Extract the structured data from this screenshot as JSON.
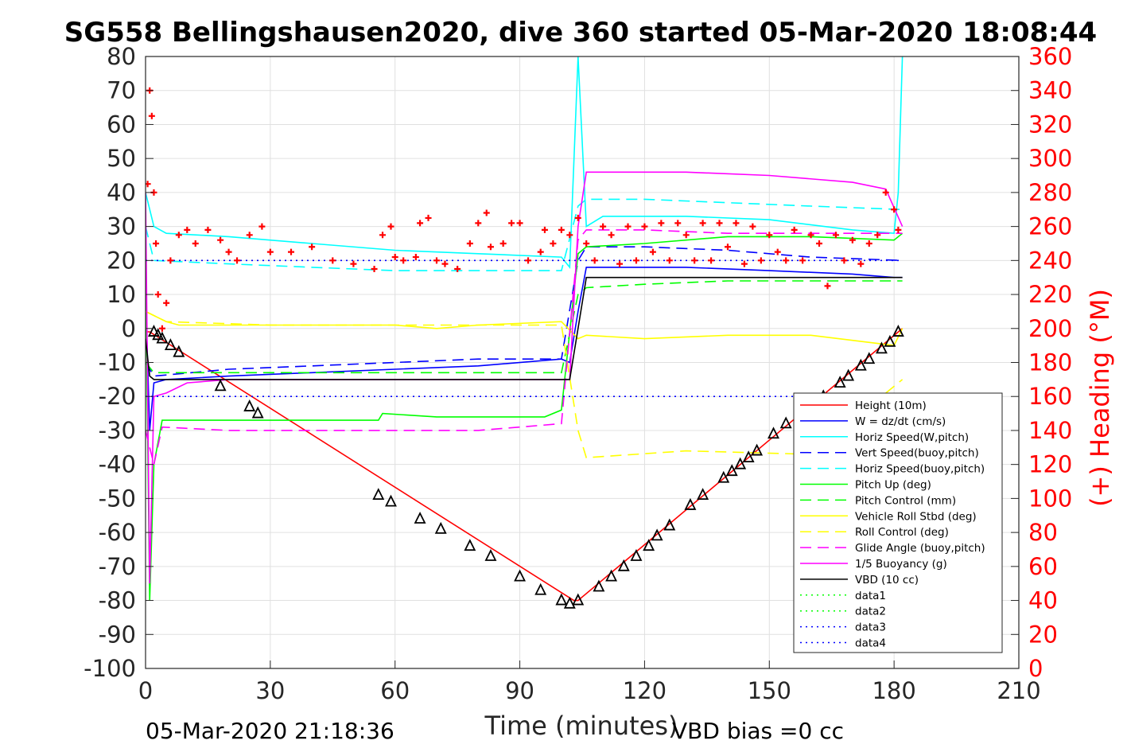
{
  "chart_data": {
    "type": "line",
    "title": "SG558 Bellingshausen2020, dive 360 started 05-Mar-2020 18:08:44",
    "xlabel": "Time (minutes)",
    "ylabel_right": "(+) Heading (°M)",
    "xlim": [
      0,
      210
    ],
    "ylim": [
      -100,
      80
    ],
    "ylim_right": [
      0,
      360
    ],
    "x_ticks": [
      "0",
      "30",
      "60",
      "90",
      "120",
      "150",
      "180",
      "210"
    ],
    "y_ticks": [
      "-100",
      "-90",
      "-80",
      "-70",
      "-60",
      "-50",
      "-40",
      "-30",
      "-20",
      "-10",
      "0",
      "10",
      "20",
      "30",
      "40",
      "50",
      "60",
      "70",
      "80"
    ],
    "y_right_ticks": [
      "0",
      "20",
      "40",
      "60",
      "80",
      "100",
      "120",
      "140",
      "160",
      "180",
      "200",
      "220",
      "240",
      "260",
      "280",
      "300",
      "320",
      "340",
      "360"
    ],
    "grid": true,
    "legend_position": "lower-right",
    "footer_left": "05-Mar-2020 21:18:36",
    "footer_right": "VBD bias =0 cc",
    "series": [
      {
        "name": "Height (10m)",
        "color": "#ff0000",
        "style": "solid",
        "x": [
          0,
          1,
          103,
          104,
          182
        ],
        "y": [
          -1,
          -1,
          -80,
          -80,
          0
        ]
      },
      {
        "name": "W = dz/dt (cm/s)",
        "color": "#0000ff",
        "style": "solid",
        "x": [
          0,
          1,
          2,
          5,
          20,
          40,
          60,
          80,
          100,
          102,
          104,
          106,
          110,
          130,
          150,
          170,
          180,
          182
        ],
        "y": [
          10,
          -30,
          -16,
          -15,
          -14,
          -13,
          -12,
          -11,
          -9,
          -10,
          5,
          18,
          18,
          18,
          17,
          16,
          15,
          15
        ]
      },
      {
        "name": "Horiz Speed(W,pitch)",
        "color": "#00ffff",
        "style": "solid",
        "x": [
          0,
          2,
          5,
          20,
          40,
          60,
          80,
          100,
          102,
          104,
          106,
          110,
          130,
          150,
          170,
          180,
          181,
          182
        ],
        "y": [
          40,
          30,
          28,
          27,
          25,
          23,
          22,
          21,
          18,
          80,
          30,
          33,
          33,
          32,
          29,
          28,
          40,
          80
        ]
      },
      {
        "name": "Vert Speed(buoy,pitch)",
        "color": "#0000ff",
        "style": "dashed",
        "x": [
          0,
          2,
          20,
          40,
          60,
          80,
          100,
          104,
          106,
          120,
          140,
          160,
          182
        ],
        "y": [
          -10,
          -14,
          -12,
          -11,
          -10,
          -9,
          -9,
          20,
          24,
          24,
          23,
          21,
          20
        ]
      },
      {
        "name": "Horiz Speed(buoy,pitch)",
        "color": "#00ffff",
        "style": "dashed",
        "x": [
          0,
          2,
          20,
          40,
          60,
          80,
          100,
          104,
          106,
          120,
          140,
          160,
          182
        ],
        "y": [
          30,
          20,
          19,
          18,
          17,
          17,
          17,
          36,
          38,
          38,
          37,
          36,
          35
        ]
      },
      {
        "name": "Pitch Up (deg)",
        "color": "#00ff00",
        "style": "solid",
        "x": [
          0,
          1,
          2,
          4,
          20,
          40,
          56,
          57,
          70,
          80,
          96,
          100,
          104,
          106,
          120,
          140,
          160,
          180,
          182
        ],
        "y": [
          20,
          -80,
          -40,
          -27,
          -27,
          -27,
          -27,
          -25,
          -26,
          -26,
          -26,
          -24,
          22,
          24,
          25,
          27,
          27,
          26,
          28
        ]
      },
      {
        "name": "Pitch Control (mm)",
        "color": "#00ff00",
        "style": "dashed",
        "x": [
          0,
          2,
          20,
          60,
          100,
          104,
          106,
          120,
          140,
          160,
          182
        ],
        "y": [
          -10,
          -13,
          -13,
          -13,
          -13,
          10,
          12,
          13,
          14,
          14,
          14
        ]
      },
      {
        "name": "Vehicle Roll Stbd (deg)",
        "color": "#ffff00",
        "style": "solid",
        "x": [
          0,
          5,
          8,
          20,
          30,
          40,
          56,
          60,
          70,
          80,
          100,
          104,
          106,
          120,
          140,
          160,
          180,
          182
        ],
        "y": [
          5,
          2,
          1,
          1,
          1,
          1,
          1,
          1,
          0,
          1,
          2,
          -3,
          -2,
          -3,
          -2,
          -2,
          -5,
          0
        ]
      },
      {
        "name": "Roll Control (deg)",
        "color": "#ffff00",
        "style": "dashed",
        "x": [
          0,
          5,
          30,
          60,
          100,
          104,
          106,
          130,
          160,
          182
        ],
        "y": [
          5,
          2,
          1,
          1,
          1,
          -30,
          -38,
          -36,
          -37,
          -15
        ]
      },
      {
        "name": "Glide Angle (buoy,pitch)",
        "color": "#ff00ff",
        "style": "dashed",
        "x": [
          0,
          2,
          4,
          20,
          40,
          60,
          80,
          100,
          104,
          106,
          120,
          140,
          160,
          182
        ],
        "y": [
          -30,
          -40,
          -29,
          -30,
          -30,
          -30,
          -30,
          -28,
          26,
          29,
          29,
          28,
          28,
          28
        ]
      },
      {
        "name": "1/5 Buoyancy (g)",
        "color": "#ff00ff",
        "style": "solid",
        "x": [
          0,
          1,
          2,
          5,
          10,
          20,
          40,
          60,
          80,
          100,
          102,
          104,
          106,
          110,
          130,
          150,
          170,
          178,
          182
        ],
        "y": [
          40,
          -75,
          -20,
          -19,
          -16,
          -15,
          -15,
          -15,
          -15,
          -15,
          -15,
          30,
          46,
          46,
          46,
          45,
          43,
          41,
          30
        ]
      },
      {
        "name": "VBD (10 cc)",
        "color": "#000000",
        "style": "solid",
        "x": [
          0,
          1,
          2,
          102,
          104,
          106,
          182
        ],
        "y": [
          -3,
          -14,
          -15,
          -15,
          0,
          15,
          15
        ]
      },
      {
        "name": "data1",
        "color": "#00ff00",
        "style": "dotted",
        "x": [],
        "y": []
      },
      {
        "name": "data2",
        "color": "#00ff00",
        "style": "dotted",
        "x": [],
        "y": []
      },
      {
        "name": "data3",
        "color": "#0000ff",
        "style": "dotted",
        "x": [
          0,
          182
        ],
        "y": [
          20,
          20
        ]
      },
      {
        "name": "data4",
        "color": "#0000ff",
        "style": "dotted",
        "x": [
          0,
          182
        ],
        "y": [
          -20,
          -20
        ]
      }
    ],
    "heading_series": {
      "axis": "right",
      "color": "#ff0000",
      "marker": "+",
      "x": [
        0.5,
        1,
        1.5,
        2,
        2.5,
        3,
        4,
        5,
        6,
        8,
        10,
        12,
        15,
        18,
        20,
        22,
        25,
        28,
        30,
        35,
        40,
        45,
        50,
        55,
        57,
        59,
        60,
        62,
        65,
        66,
        68,
        70,
        72,
        75,
        78,
        80,
        82,
        83,
        86,
        88,
        90,
        92,
        95,
        96,
        98,
        100,
        102,
        104,
        106,
        108,
        110,
        112,
        114,
        116,
        118,
        120,
        122,
        124,
        126,
        128,
        130,
        132,
        134,
        136,
        138,
        140,
        142,
        144,
        146,
        148,
        150,
        152,
        154,
        156,
        158,
        160,
        162,
        164,
        166,
        168,
        170,
        172,
        174,
        176,
        178,
        180,
        181
      ],
      "y": [
        285,
        340,
        325,
        280,
        250,
        220,
        200,
        215,
        240,
        255,
        258,
        250,
        258,
        252,
        245,
        240,
        255,
        260,
        245,
        245,
        248,
        240,
        238,
        235,
        255,
        260,
        242,
        240,
        242,
        262,
        265,
        240,
        238,
        235,
        250,
        262,
        268,
        248,
        250,
        262,
        262,
        240,
        245,
        258,
        250,
        258,
        255,
        265,
        250,
        240,
        260,
        255,
        238,
        260,
        240,
        260,
        245,
        262,
        240,
        262,
        255,
        240,
        262,
        240,
        262,
        248,
        262,
        238,
        260,
        240,
        255,
        245,
        240,
        258,
        240,
        255,
        250,
        225,
        255,
        240,
        252,
        238,
        250,
        255,
        280,
        270,
        258
      ]
    },
    "vbd_markers": {
      "color": "#000000",
      "marker": "triangle",
      "x": [
        2,
        3,
        4,
        6,
        8,
        18,
        25,
        27,
        56,
        59,
        66,
        71,
        78,
        83,
        90,
        95,
        100,
        102,
        104,
        109,
        112,
        115,
        118,
        121,
        123,
        126,
        131,
        134,
        139,
        141,
        143,
        145,
        147,
        151,
        154,
        161,
        162,
        163,
        167,
        169,
        172,
        174,
        177,
        179,
        181
      ],
      "y": [
        -1,
        -2,
        -3,
        -5,
        -7,
        -17,
        -23,
        -25,
        -49,
        -51,
        -56,
        -59,
        -64,
        -67,
        -73,
        -77,
        -80,
        -81,
        -80,
        -76,
        -73,
        -70,
        -67,
        -64,
        -61,
        -58,
        -52,
        -49,
        -44,
        -42,
        -40,
        -38,
        -36,
        -31,
        -28,
        -22,
        -21,
        -20,
        -16,
        -14,
        -11,
        -9,
        -6,
        -4,
        -1
      ]
    }
  }
}
